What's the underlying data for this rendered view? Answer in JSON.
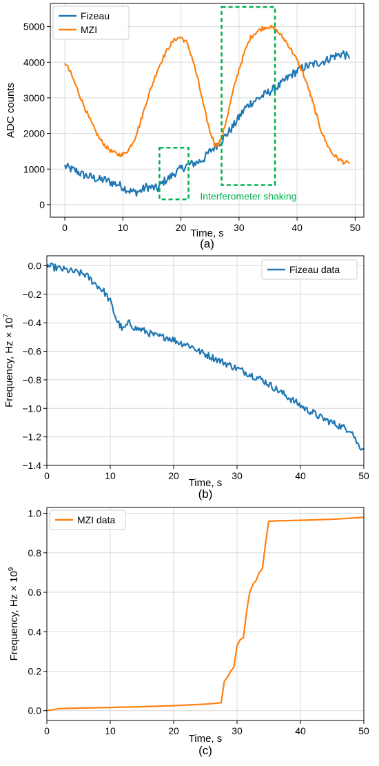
{
  "colors": {
    "fizeau": "#1f77b4",
    "mzi": "#ff7f0e",
    "annotation": "#00b050",
    "grid": "#d9d9d9"
  },
  "chart_data": [
    {
      "id": "a",
      "type": "line",
      "panel_label": "(a)",
      "xlabel": "Time, s",
      "ylabel": "ADC counts",
      "xlim": [
        -2.5,
        51.5
      ],
      "ylim": [
        -350,
        5650
      ],
      "xticks": [
        0,
        10,
        20,
        30,
        40,
        50
      ],
      "yticks": [
        0,
        1000,
        2000,
        3000,
        4000,
        5000
      ],
      "grid": true,
      "legend_position": "top-left",
      "series": [
        {
          "name": "Fizeau",
          "color": "#1f77b4",
          "x": [
            0,
            1,
            2,
            3,
            4,
            5,
            6,
            7,
            8,
            9,
            10,
            11,
            12,
            13,
            14,
            15,
            16,
            17,
            18,
            19,
            20,
            21,
            22,
            23,
            24,
            25,
            26,
            27,
            28,
            29,
            30,
            31,
            32,
            33,
            34,
            35,
            36,
            37,
            38,
            39,
            40,
            41,
            42,
            43,
            44,
            45,
            46,
            47,
            48,
            49
          ],
          "y": [
            1080,
            1000,
            950,
            850,
            800,
            750,
            700,
            700,
            620,
            580,
            500,
            400,
            350,
            380,
            500,
            480,
            450,
            650,
            750,
            900,
            1000,
            1100,
            1150,
            1200,
            1300,
            1500,
            1650,
            1800,
            2000,
            2200,
            2450,
            2700,
            2850,
            2950,
            3050,
            3150,
            3250,
            3350,
            3500,
            3650,
            3750,
            3850,
            3900,
            3950,
            4000,
            4050,
            4150,
            4200,
            4250,
            4100
          ],
          "noise": 120
        },
        {
          "name": "MZI",
          "color": "#ff7f0e",
          "x": [
            0,
            1,
            2,
            3,
            4,
            5,
            6,
            7,
            8,
            9,
            10,
            11,
            12,
            13,
            14,
            15,
            16,
            17,
            18,
            19,
            20,
            21,
            22,
            23,
            24,
            25,
            26,
            27,
            28,
            29,
            30,
            31,
            32,
            33,
            34,
            35,
            36,
            37,
            38,
            39,
            40,
            41,
            42,
            43,
            44,
            45,
            46,
            47,
            48,
            49
          ],
          "y": [
            4000,
            3700,
            3300,
            2900,
            2500,
            2150,
            1850,
            1650,
            1500,
            1420,
            1400,
            1550,
            1850,
            2300,
            2850,
            3350,
            3800,
            4150,
            4450,
            4650,
            4700,
            4550,
            4100,
            3450,
            2700,
            2050,
            1650,
            1850,
            2500,
            3200,
            3800,
            4300,
            4700,
            4850,
            4950,
            5000,
            4950,
            4800,
            4600,
            4350,
            4050,
            3700,
            3250,
            2700,
            2150,
            1750,
            1450,
            1300,
            1200,
            1150
          ],
          "noise": 60
        }
      ],
      "annotations": [
        {
          "text": "Interferometer shaking",
          "x0": 16.3,
          "x1": 21.3,
          "y0": 150,
          "y1": 1600,
          "x2": 27.0,
          "x3": 36.2,
          "y2": 550,
          "y3": 5550
        }
      ]
    },
    {
      "id": "b",
      "type": "line",
      "panel_label": "(b)",
      "xlabel": "Time, s",
      "ylabel": "Frequency, Hz × 10",
      "ylabel_exp": "7",
      "xlim": [
        0,
        50
      ],
      "ylim": [
        -1.4,
        0.07
      ],
      "xticks": [
        0,
        10,
        20,
        30,
        40,
        50
      ],
      "yticks": [
        0.0,
        -0.2,
        -0.4,
        -0.6,
        -0.8,
        -1.0,
        -1.2,
        -1.4
      ],
      "ytick_labels": [
        "0.0",
        "−0.2",
        "−0.4",
        "−0.6",
        "−0.8",
        "−1.0",
        "−1.2",
        "−1.4"
      ],
      "grid": true,
      "legend_position": "top-right",
      "series": [
        {
          "name": "Fizeau data",
          "color": "#1f77b4",
          "x": [
            0,
            1,
            2,
            3,
            4,
            5,
            6,
            7,
            8,
            9,
            10,
            11,
            12,
            13,
            14,
            15,
            16,
            17,
            18,
            19,
            20,
            21,
            22,
            23,
            24,
            25,
            26,
            27,
            28,
            29,
            30,
            31,
            32,
            33,
            34,
            35,
            36,
            37,
            38,
            39,
            40,
            41,
            42,
            43,
            44,
            45,
            46,
            47,
            48,
            49,
            50
          ],
          "y": [
            0.0,
            -0.01,
            -0.02,
            -0.03,
            -0.04,
            -0.05,
            -0.06,
            -0.1,
            -0.14,
            -0.18,
            -0.25,
            -0.38,
            -0.45,
            -0.4,
            -0.44,
            -0.45,
            -0.47,
            -0.49,
            -0.5,
            -0.5,
            -0.52,
            -0.54,
            -0.55,
            -0.57,
            -0.6,
            -0.62,
            -0.64,
            -0.66,
            -0.68,
            -0.7,
            -0.72,
            -0.74,
            -0.76,
            -0.78,
            -0.8,
            -0.83,
            -0.86,
            -0.89,
            -0.92,
            -0.95,
            -0.98,
            -1.01,
            -1.03,
            -1.06,
            -1.08,
            -1.1,
            -1.12,
            -1.14,
            -1.15,
            -1.25,
            -1.29
          ],
          "noise": 0.025
        }
      ]
    },
    {
      "id": "c",
      "type": "line",
      "panel_label": "(c)",
      "xlabel": "Time, s",
      "ylabel": "Frequency, Hz × 10",
      "ylabel_exp": "9",
      "xlim": [
        0,
        50
      ],
      "ylim": [
        -0.05,
        1.03
      ],
      "xticks": [
        0,
        10,
        20,
        30,
        40,
        50
      ],
      "yticks": [
        0.0,
        0.2,
        0.4,
        0.6,
        0.8,
        1.0
      ],
      "ytick_labels": [
        "0.0",
        "0.2",
        "0.4",
        "0.6",
        "0.8",
        "1.0"
      ],
      "grid": true,
      "legend_position": "top-left",
      "series": [
        {
          "name": "MZI data",
          "color": "#ff7f0e",
          "x": [
            0,
            2,
            5,
            10,
            15,
            20,
            25,
            27.5,
            28,
            28.5,
            29,
            29.5,
            30,
            30.5,
            31,
            31.5,
            32,
            32.5,
            33,
            33.5,
            34,
            34.5,
            35,
            36,
            40,
            45,
            50
          ],
          "y": [
            0.0,
            0.01,
            0.013,
            0.016,
            0.02,
            0.025,
            0.033,
            0.04,
            0.15,
            0.17,
            0.2,
            0.22,
            0.33,
            0.36,
            0.37,
            0.5,
            0.6,
            0.64,
            0.66,
            0.7,
            0.72,
            0.85,
            0.96,
            0.962,
            0.965,
            0.97,
            0.98
          ],
          "noise": 0
        }
      ]
    }
  ]
}
